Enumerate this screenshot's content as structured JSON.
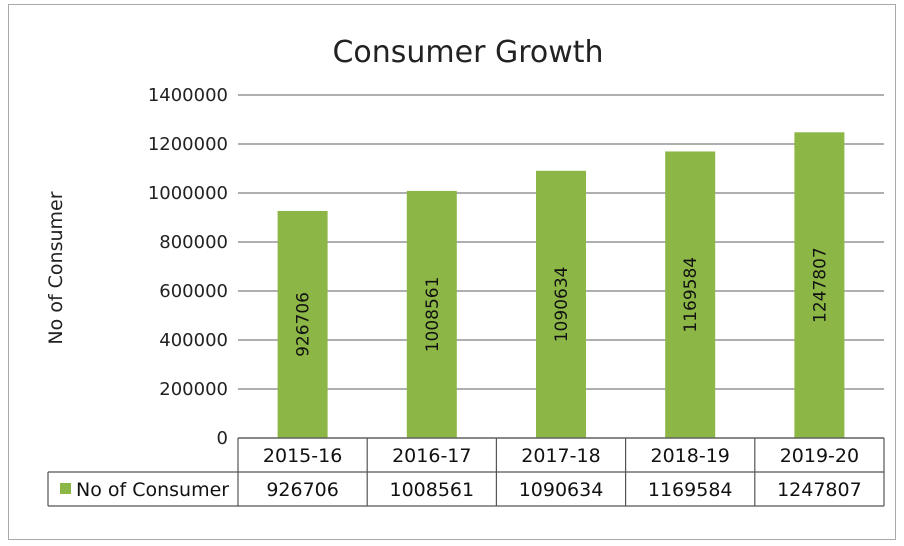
{
  "chart_data": {
    "type": "bar",
    "title": "Consumer Growth",
    "ylabel": "No of Consumer",
    "xlabel": "",
    "categories": [
      "2015-16",
      "2016-17",
      "2017-18",
      "2018-19",
      "2019-20"
    ],
    "series": [
      {
        "name": "No of Consumer",
        "values": [
          926706,
          1008561,
          1090634,
          1169584,
          1247807
        ],
        "color": "#8cb746"
      }
    ],
    "ylim": [
      0,
      1400000
    ],
    "yticks": [
      "1400000",
      "1200000",
      "1000000",
      "800000",
      "600000",
      "400000",
      "200000",
      "0"
    ],
    "grid": true,
    "data_labels": "inside-rotated",
    "data_table": true
  }
}
